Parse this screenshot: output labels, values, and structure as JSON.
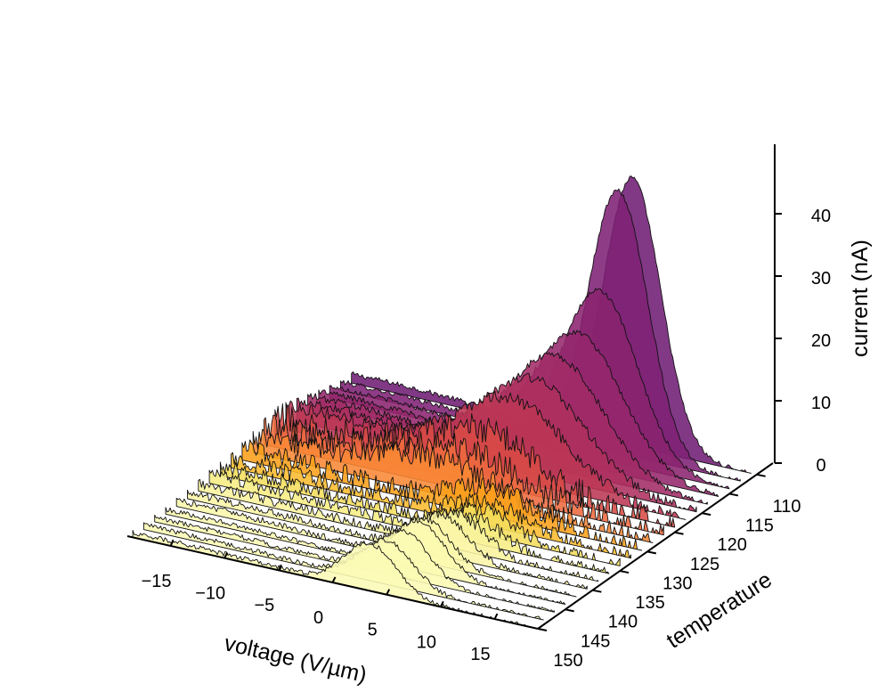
{
  "chart_data": {
    "type": "area",
    "title": "",
    "xlabel": "voltage (V/µm)",
    "ylabel": "temperature",
    "zlabel": "current (nA)",
    "x_ticks": [
      "−15",
      "−10",
      "−5",
      "0",
      "5",
      "10",
      "15"
    ],
    "x_tick_values": [
      -15,
      -10,
      -5,
      0,
      5,
      10,
      15
    ],
    "y_ticks": [
      "110",
      "115",
      "120",
      "125",
      "130",
      "135",
      "140",
      "145",
      "150"
    ],
    "y_tick_values": [
      110,
      115,
      120,
      125,
      130,
      135,
      140,
      145,
      150
    ],
    "z_ticks": [
      "0",
      "10",
      "20",
      "30",
      "40"
    ],
    "z_tick_values": [
      0,
      10,
      20,
      30,
      40
    ],
    "xlim": [
      -19,
      19
    ],
    "ylim": [
      108,
      151
    ],
    "zlim": [
      0,
      50
    ],
    "colormap": "inferno",
    "series": [
      {
        "temperature": 110,
        "peak_voltage": 7.5,
        "peak_current": 43.0,
        "width": 4.2,
        "baseline": 1.5,
        "noise": 0.4,
        "color": "#6f1e74"
      },
      {
        "temperature": 112,
        "peak_voltage": 7.2,
        "peak_current": 42.0,
        "width": 4.4,
        "baseline": 1.5,
        "noise": 0.4,
        "color": "#7e2175"
      },
      {
        "temperature": 114,
        "peak_voltage": 6.5,
        "peak_current": 27.0,
        "width": 5.5,
        "baseline": 2.0,
        "noise": 0.4,
        "color": "#8a2370"
      },
      {
        "temperature": 116,
        "peak_voltage": 5.5,
        "peak_current": 21.0,
        "width": 6.5,
        "baseline": 2.5,
        "noise": 0.5,
        "color": "#94276c"
      },
      {
        "temperature": 118,
        "peak_voltage": 4.5,
        "peak_current": 18.0,
        "width": 7.0,
        "baseline": 3.0,
        "noise": 0.6,
        "color": "#a22b66"
      },
      {
        "temperature": 120,
        "peak_voltage": 3.5,
        "peak_current": 15.0,
        "width": 7.5,
        "baseline": 3.5,
        "noise": 0.8,
        "color": "#ae305e"
      },
      {
        "temperature": 122,
        "peak_voltage": 2.5,
        "peak_current": 12.5,
        "width": 8.0,
        "baseline": 4.0,
        "noise": 1.0,
        "color": "#bc3754"
      },
      {
        "temperature": 124,
        "peak_voltage": 1.0,
        "peak_current": 8.0,
        "width": 8.5,
        "baseline": 3.5,
        "noise": 2.2,
        "color": "#d84b45"
      },
      {
        "temperature": 126,
        "peak_voltage": 0.0,
        "peak_current": 6.0,
        "width": 9.0,
        "baseline": 3.0,
        "noise": 2.2,
        "color": "#ee6a3f"
      },
      {
        "temperature": 128,
        "peak_voltage": -1.0,
        "peak_current": 5.0,
        "width": 9.0,
        "baseline": 2.5,
        "noise": 1.8,
        "color": "#f98834"
      },
      {
        "temperature": 130,
        "peak_voltage": 5.0,
        "peak_current": 4.5,
        "width": 6.0,
        "baseline": 2.0,
        "noise": 1.6,
        "color": "#fca01a"
      },
      {
        "temperature": 132,
        "peak_voltage": 5.5,
        "peak_current": 3.5,
        "width": 6.0,
        "baseline": 1.5,
        "noise": 1.3,
        "color": "#fbbb2d"
      },
      {
        "temperature": 134,
        "peak_voltage": 6.0,
        "peak_current": 4.0,
        "width": 5.0,
        "baseline": 1.5,
        "noise": 1.2,
        "color": "#f4de5c"
      },
      {
        "temperature": 136,
        "peak_voltage": 5.5,
        "peak_current": 4.5,
        "width": 4.5,
        "baseline": 1.5,
        "noise": 1.0,
        "color": "#f6ed83"
      },
      {
        "temperature": 138,
        "peak_voltage": 5.5,
        "peak_current": 5.5,
        "width": 4.2,
        "baseline": 1.2,
        "noise": 0.8,
        "color": "#f8f29c"
      },
      {
        "temperature": 140,
        "peak_voltage": 5.0,
        "peak_current": 6.5,
        "width": 4.0,
        "baseline": 1.0,
        "noise": 0.6,
        "color": "#fbf6a8"
      },
      {
        "temperature": 142,
        "peak_voltage": 4.5,
        "peak_current": 7.0,
        "width": 3.8,
        "baseline": 1.0,
        "noise": 0.5,
        "color": "#fcf8ad"
      },
      {
        "temperature": 144,
        "peak_voltage": 5.0,
        "peak_current": 8.0,
        "width": 3.8,
        "baseline": 0.8,
        "noise": 0.4,
        "color": "#fcf9b0"
      },
      {
        "temperature": 146,
        "peak_voltage": 4.5,
        "peak_current": 7.5,
        "width": 3.8,
        "baseline": 0.8,
        "noise": 0.4,
        "color": "#fcfab3"
      },
      {
        "temperature": 148,
        "peak_voltage": 4.0,
        "peak_current": 7.0,
        "width": 3.8,
        "baseline": 0.8,
        "noise": 0.4,
        "color": "#fcfab4"
      },
      {
        "temperature": 150,
        "peak_voltage": 3.5,
        "peak_current": 7.5,
        "width": 3.8,
        "baseline": 0.8,
        "noise": 0.4,
        "color": "#fcfbb6"
      }
    ]
  }
}
